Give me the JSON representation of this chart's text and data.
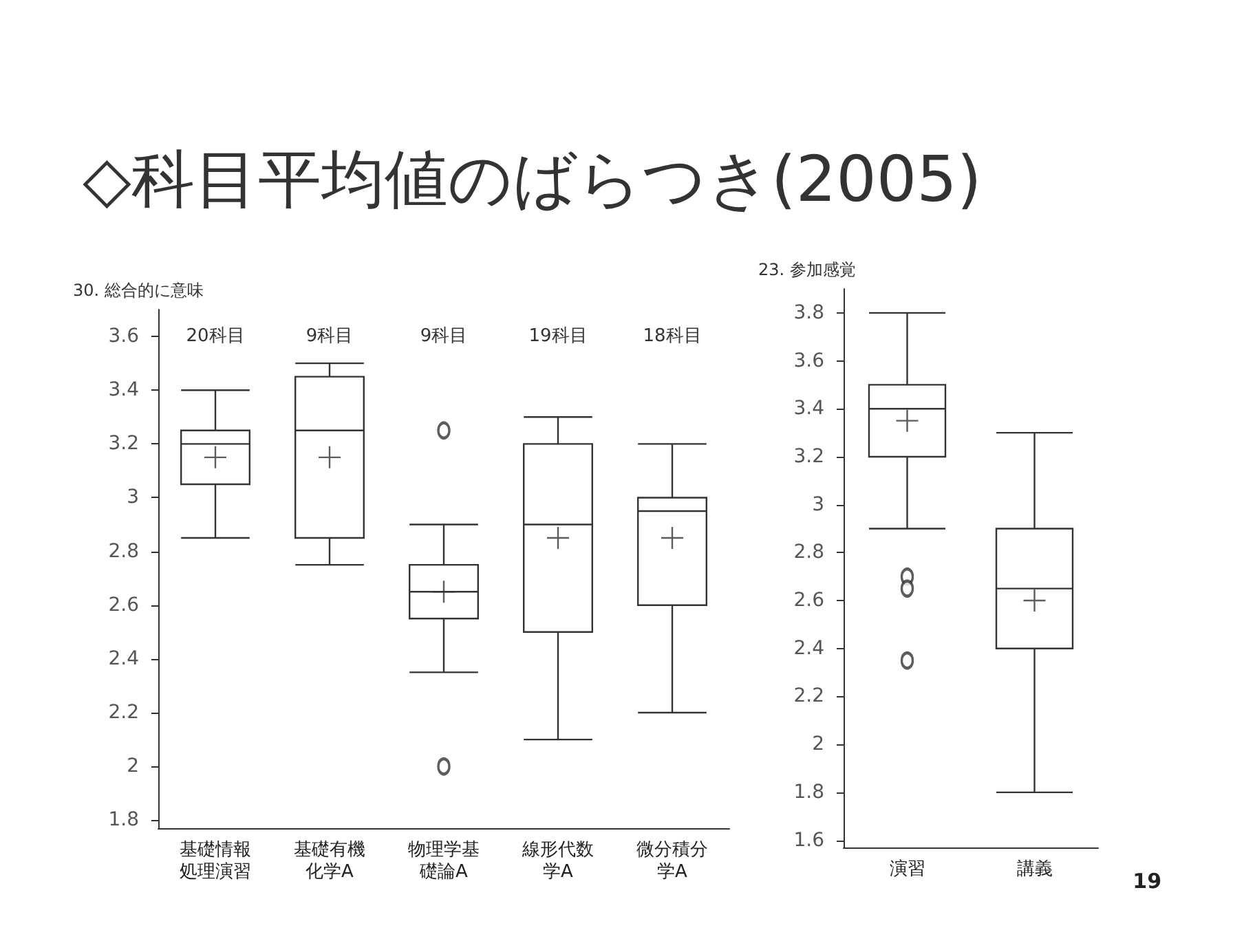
{
  "chart_data": [
    {
      "type": "box",
      "title": "◇科目平均値のばらつき(2005)",
      "ylabel": "30. 総合的に意味",
      "categories": [
        "基礎情報処理演習",
        "基礎有機化学A",
        "物理学基礎論A",
        "線形代数学A",
        "微分積分学A"
      ],
      "boxes": [
        {
          "low": 2.85,
          "q1": 3.05,
          "median": 3.2,
          "q3": 3.25,
          "high": 3.4,
          "mean": 3.15
        },
        {
          "low": 2.75,
          "q1": 2.85,
          "median": 3.25,
          "q3": 3.45,
          "high": 3.5,
          "mean": 3.15
        },
        {
          "low": 2.35,
          "q1": 2.55,
          "median": 2.65,
          "q3": 2.75,
          "high": 2.9,
          "mean": 2.65,
          "outliers": [
            3.25,
            2.0
          ]
        },
        {
          "low": 2.1,
          "q1": 2.5,
          "median": 2.9,
          "q3": 3.2,
          "high": 3.3,
          "mean": 2.85
        },
        {
          "low": 2.2,
          "q1": 2.6,
          "median": 2.95,
          "q3": 3.0,
          "high": 3.2,
          "mean": 2.85
        }
      ],
      "ylim": [
        1.77,
        3.7
      ],
      "yticks": [
        1.8,
        2,
        2.2,
        2.4,
        2.6,
        2.8,
        3,
        3.2,
        3.4,
        3.6
      ],
      "annotations": [
        "20科目",
        "9科目",
        "9科目",
        "19科目",
        "18科目"
      ]
    },
    {
      "type": "box",
      "ylabel": "23. 参加感覚",
      "categories": [
        "演習",
        "講義"
      ],
      "boxes": [
        {
          "low": 2.9,
          "q1": 3.2,
          "median": 3.4,
          "q3": 3.5,
          "high": 3.8,
          "mean": 3.35,
          "outliers": [
            2.7,
            2.65,
            2.35
          ]
        },
        {
          "low": 1.8,
          "q1": 2.4,
          "median": 2.65,
          "q3": 2.9,
          "high": 3.3,
          "mean": 2.6
        }
      ],
      "ylim": [
        1.57,
        3.9
      ],
      "yticks": [
        1.6,
        1.8,
        2,
        2.2,
        2.4,
        2.6,
        2.8,
        3,
        3.2,
        3.4,
        3.6,
        3.8
      ],
      "annotations": [
        "19"
      ]
    }
  ]
}
